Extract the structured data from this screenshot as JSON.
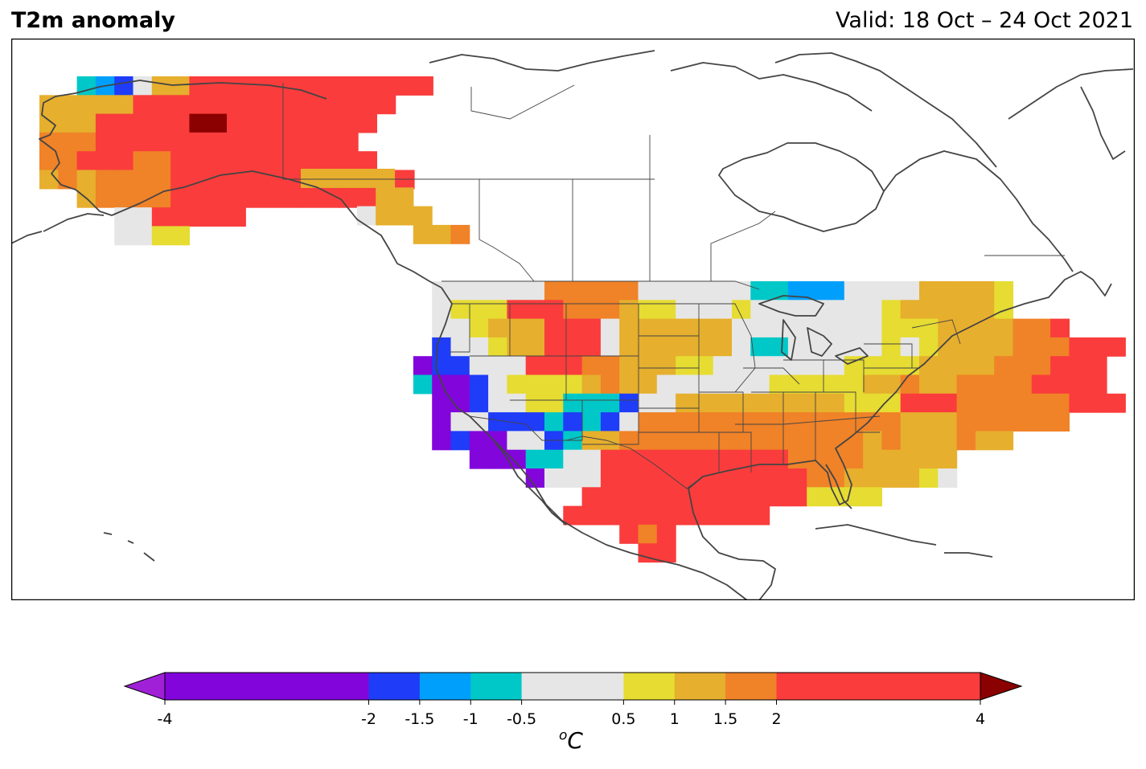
{
  "title": "T2m anomaly",
  "valid": "Valid: 18 Oct – 24 Oct 2021",
  "colorbar": {
    "unit": "C",
    "unit_superscript": "o",
    "tick_labels": [
      "-4",
      "-2",
      "-1.5",
      "-1",
      "-0.5",
      "0.5",
      "1",
      "1.5",
      "2",
      "4"
    ],
    "levels": [
      -4,
      -2,
      -1.5,
      -1,
      -0.5,
      0.5,
      1,
      1.5,
      2,
      4
    ],
    "colors": [
      "#8205dc",
      "#1f3cf8",
      "#009ffc",
      "#00c8c8",
      "#e6e6e6",
      "#e6dc32",
      "#e6af2d",
      "#f08228",
      "#fa3c3c"
    ],
    "under_color": "#a020d8",
    "over_color": "#8b0000"
  },
  "legend": {
    "0": "< -2",
    "1": "-2 to -1.5",
    "2": "-1.5 to -1",
    "3": "-1 to -0.5",
    "4": "-0.5 to 0.5",
    "5": "0.5 to 1",
    "6": "1 to 1.5",
    "7": "1.5 to 2",
    "8": "2 to 4",
    "9": "> 4"
  },
  "grid": {
    "alaska": [
      "..3214668888888888888",
      "6666688888888888888",
      "666888889988888888",
      "77788888888888888",
      "778887788888888888",
      "67677778888888888888",
      "..67777888888888888",
      "....4488888",
      "....4455"
    ],
    "bc": [
      "66666..",
      "....66",
      "...4666",
      "......667"
    ],
    "conus": [
      "....4444447777744444433222444466665",
      "....4555888777655444544444445666665",
      "....4456668884666666444444445556666778",
      "....1445668884666666433444445456666777888",
      "...0114448887766655444444455556666777888",
      "...3001455556766444444555556676677778888",
      "....0014455333144666666666555888777777888",
      "....0441113131477777777777777666777777",
      "....0100441366777777777777767666766",
      "......00033448888888888777766666",
      ".........04448888888888877666654",
      "............8888888888885555",
      "...........88888888888",
      "..............878",
      "...............88"
    ]
  }
}
